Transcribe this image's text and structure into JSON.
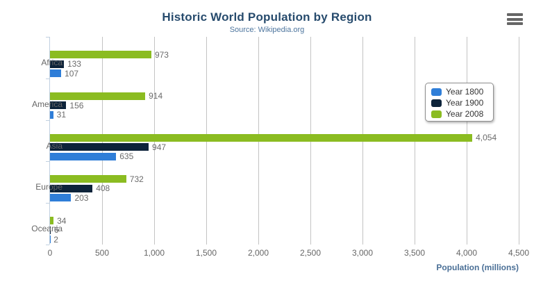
{
  "header": {
    "title": "Historic World Population by Region",
    "subtitle": "Source: Wikipedia.org"
  },
  "toolbar": {
    "menu_icon": "hamburger-menu-icon"
  },
  "chart_data": {
    "type": "bar",
    "title": "Historic World Population by Region",
    "subtitle": "Source: Wikipedia.org",
    "categories": [
      "Africa",
      "America",
      "Asia",
      "Europe",
      "Oceania"
    ],
    "series": [
      {
        "name": "Year 1800",
        "color": "#2f7ed8",
        "values": [
          107,
          31,
          635,
          203,
          2
        ]
      },
      {
        "name": "Year 1900",
        "color": "#0d233a",
        "values": [
          133,
          156,
          947,
          408,
          6
        ]
      },
      {
        "name": "Year 2008",
        "color": "#8bbc21",
        "values": [
          973,
          914,
          4054,
          732,
          34
        ]
      }
    ],
    "data_labels": [
      [
        "107",
        "31",
        "635",
        "203",
        "2"
      ],
      [
        "133",
        "156",
        "947",
        "408",
        "6"
      ],
      [
        "973",
        "914",
        "4,054",
        "732",
        "34"
      ]
    ],
    "xlabel": "Population (millions)",
    "ylabel": "",
    "xlim": [
      0,
      4500
    ],
    "tick_interval": 500,
    "tick_labels": [
      "0",
      "500",
      "1,000",
      "1,500",
      "2,000",
      "2,500",
      "3,000",
      "3,500",
      "4,000",
      "4,500"
    ],
    "grid": true,
    "legend_position": "right-floating",
    "legend_items": [
      "Year 1800",
      "Year 1900",
      "Year 2008"
    ]
  }
}
